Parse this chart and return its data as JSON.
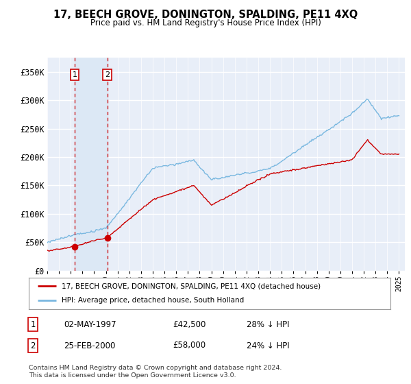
{
  "title": "17, BEECH GROVE, DONINGTON, SPALDING, PE11 4XQ",
  "subtitle": "Price paid vs. HM Land Registry's House Price Index (HPI)",
  "ylim": [
    0,
    370000
  ],
  "xlim_start": 1995.0,
  "xlim_end": 2025.5,
  "sale1_date": 1997.33,
  "sale1_price": 42500,
  "sale2_date": 2000.12,
  "sale2_price": 58000,
  "legend_line1": "17, BEECH GROVE, DONINGTON, SPALDING, PE11 4XQ (detached house)",
  "legend_line2": "HPI: Average price, detached house, South Holland",
  "footnote": "Contains HM Land Registry data © Crown copyright and database right 2024.\nThis data is licensed under the Open Government Licence v3.0.",
  "hpi_color": "#7ab8e0",
  "price_color": "#cc0000",
  "dashed_line_color": "#cc0000",
  "shade_color": "#dce8f5",
  "plot_bg_color": "#e8eef8",
  "grid_color": "#ffffff",
  "sale1_info_date": "02-MAY-1997",
  "sale1_info_price": "£42,500",
  "sale1_info_pct": "28% ↓ HPI",
  "sale2_info_date": "25-FEB-2000",
  "sale2_info_price": "£58,000",
  "sale2_info_pct": "24% ↓ HPI"
}
